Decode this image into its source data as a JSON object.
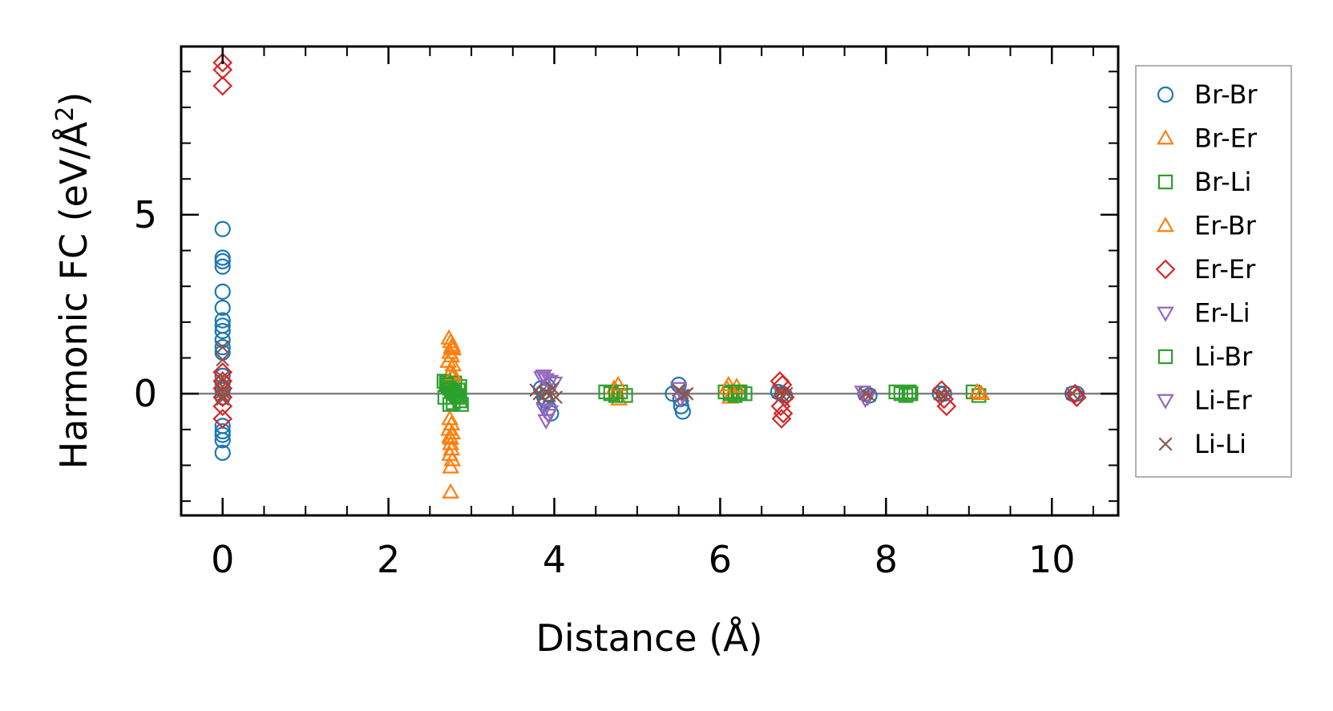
{
  "chart_data": {
    "type": "scatter",
    "title": "",
    "xlabel": "Distance (Å)",
    "ylabel_main": "Harmonic FC (eV/Å",
    "ylabel_sup": "2",
    "ylabel_close": ")",
    "xlim": [
      -0.5,
      10.8
    ],
    "ylim": [
      -3.4,
      9.7
    ],
    "xticks": [
      0,
      2,
      4,
      6,
      8,
      10
    ],
    "xtick_labels": [
      "0",
      "2",
      "4",
      "6",
      "8",
      "10"
    ],
    "yticks": [
      0,
      5
    ],
    "ytick_labels": [
      "0",
      "5"
    ],
    "zero_line": true,
    "grid": false,
    "legend_position": "outside-right",
    "series": [
      {
        "name": "Br-Br",
        "marker": "circle",
        "color": "#1f77b4",
        "x": [
          0,
          0,
          0,
          0,
          0,
          0,
          0,
          0,
          0,
          0,
          0,
          0,
          0,
          0,
          0,
          0,
          0,
          0,
          0,
          0,
          0,
          3.84,
          3.87,
          3.9,
          3.93,
          3.96,
          3.88,
          3.92,
          5.43,
          5.5,
          5.52,
          5.53,
          5.55,
          6.75,
          6.7,
          6.78,
          7.75,
          7.8,
          8.65,
          8.7,
          10.25,
          10.3
        ],
        "y": [
          4.6,
          3.8,
          3.7,
          3.55,
          2.85,
          2.4,
          2.05,
          1.9,
          1.75,
          1.5,
          1.3,
          1.15,
          0.5,
          0.3,
          0.1,
          -0.1,
          -0.9,
          -1.05,
          -1.15,
          -1.3,
          -1.65,
          0.15,
          0.05,
          -0.2,
          -0.4,
          -0.55,
          -0.1,
          0.2,
          0,
          0.25,
          -0.15,
          -0.35,
          -0.5,
          0,
          0.05,
          -0.05,
          0,
          -0.05,
          0,
          0,
          0,
          0
        ]
      },
      {
        "name": "Br-Er",
        "marker": "triangle-up",
        "color": "#ff7f0e",
        "x": [
          2.73,
          2.75,
          2.77,
          2.78,
          2.74,
          2.76,
          2.72,
          2.78,
          2.75,
          2.77,
          2.74,
          2.76,
          2.73,
          2.77,
          2.75,
          2.75,
          2.76,
          2.74,
          2.77,
          2.75,
          2.75,
          4.72,
          4.75,
          4.78,
          6.08,
          6.12,
          6.15
        ],
        "y": [
          1.55,
          1.45,
          1.35,
          1.25,
          1.15,
          1.05,
          0.9,
          0.8,
          0.6,
          0.45,
          -0.7,
          -0.85,
          -1.0,
          -1.1,
          -1.25,
          -1.4,
          -1.55,
          -1.7,
          -1.85,
          -2.05,
          -2.75,
          0.15,
          0.05,
          -0.15,
          0.15,
          -0.1,
          0.05
        ]
      },
      {
        "name": "Br-Li",
        "marker": "square",
        "color": "#2ca02c",
        "x": [
          2.67,
          2.7,
          2.72,
          2.74,
          2.76,
          2.78,
          2.8,
          2.82,
          2.84,
          2.86,
          2.88,
          2.68,
          2.74,
          2.8,
          2.86,
          4.62,
          4.68,
          4.74,
          4.8,
          4.86,
          6.06,
          6.12,
          6.18,
          6.24,
          6.3,
          8.12,
          8.18,
          8.24,
          8.3,
          9.05,
          9.12
        ],
        "y": [
          0.35,
          0.3,
          0.2,
          0.15,
          0.1,
          0.05,
          0,
          -0.05,
          -0.1,
          -0.2,
          -0.3,
          -0.1,
          -0.3,
          0.3,
          0.2,
          0.05,
          0,
          -0.05,
          0.05,
          -0.05,
          0.05,
          0,
          -0.05,
          0.05,
          0,
          0.05,
          0,
          -0.05,
          0,
          0.05,
          -0.05
        ]
      },
      {
        "name": "Er-Br",
        "marker": "triangle-up",
        "color": "#ff7f0e",
        "x": [
          2.76,
          2.78,
          2.74,
          4.77,
          6.1,
          6.2,
          9.1,
          9.15
        ],
        "y": [
          1.3,
          0.55,
          -1.2,
          0.25,
          0.25,
          0.2,
          0.05,
          0
        ]
      },
      {
        "name": "Er-Er",
        "marker": "diamond",
        "color": "#d62728",
        "x": [
          0,
          0,
          0,
          0,
          0,
          0,
          0,
          0,
          0,
          6.72,
          6.75,
          6.78,
          6.73,
          6.76,
          6.74,
          8.67,
          8.7,
          8.73,
          10.28,
          10.3
        ],
        "y": [
          9.25,
          9.05,
          8.6,
          0.6,
          0.35,
          0.15,
          -0.1,
          -0.35,
          -0.7,
          0.35,
          0.25,
          -0.1,
          -0.35,
          -0.55,
          -0.7,
          0.1,
          -0.15,
          -0.35,
          0,
          -0.1
        ]
      },
      {
        "name": "Er-Li",
        "marker": "triangle-down",
        "color": "#9467bd",
        "x": [
          3.85,
          3.9,
          3.95,
          4.0,
          3.88,
          3.93,
          3.9,
          5.5,
          5.55,
          7.72,
          7.78
        ],
        "y": [
          0.45,
          0.4,
          0.35,
          0.3,
          -0.45,
          -0.6,
          -0.75,
          0.15,
          -0.05,
          0.05,
          -0.1
        ]
      },
      {
        "name": "Li-Br",
        "marker": "square",
        "color": "#2ca02c",
        "x": [
          2.7,
          2.78,
          2.84,
          6.22,
          8.28
        ],
        "y": [
          0.25,
          -0.25,
          0.1,
          0.05,
          0.05
        ]
      },
      {
        "name": "Li-Er",
        "marker": "triangle-down",
        "color": "#9467bd",
        "x": [
          3.87,
          3.95,
          5.52,
          7.75
        ],
        "y": [
          0.5,
          -0.5,
          -0.15,
          -0.15
        ]
      },
      {
        "name": "Li-Li",
        "marker": "x",
        "color": "#8c564b",
        "x": [
          0,
          0,
          0,
          0,
          0,
          0,
          0,
          3.78,
          3.82,
          3.86,
          3.9,
          3.94,
          3.98,
          4.02,
          5.5,
          5.55,
          5.6,
          6.7,
          6.75,
          6.8,
          7.75,
          7.8,
          8.65,
          8.7,
          10.25
        ],
        "y": [
          1.3,
          0.95,
          0.45,
          0.2,
          0.05,
          -0.05,
          -0.15,
          0.1,
          0,
          -0.1,
          0.05,
          -0.05,
          0.15,
          -0.1,
          0.1,
          -0.05,
          0,
          0.05,
          -0.05,
          0,
          0,
          -0.05,
          0,
          -0.05,
          0
        ]
      }
    ]
  }
}
